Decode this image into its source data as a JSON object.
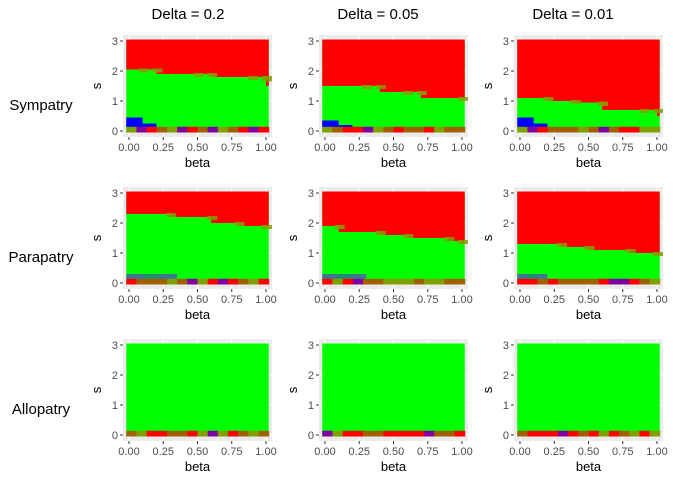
{
  "col_titles": [
    "Delta = 0.2",
    "Delta = 0.05",
    "Delta = 0.01"
  ],
  "row_labels": [
    "Sympatry",
    "Parapatry",
    "Allopatry"
  ],
  "colors": {
    "red": "#ff0000",
    "green": "#00ff00",
    "blue": "#0000ff",
    "olive": "#80a000",
    "brown": "#a06000",
    "purple": "#8000a0",
    "teal": "#1a8f73",
    "steelblue": "#3b7a8c",
    "panel_bg": "#ebebeb",
    "grid": "#ffffff"
  },
  "chart_data": [
    {
      "type": "heatmap",
      "row": "Sympatry",
      "col": "Delta = 0.2",
      "xlabel": "beta",
      "ylabel": "s",
      "xlim": [
        0,
        1
      ],
      "ylim": [
        0,
        3
      ],
      "x_ticks": [
        "0.00",
        "0.25",
        "0.50",
        "0.75",
        "1.00"
      ],
      "y_ticks": [
        "0",
        "1",
        "2",
        "3"
      ],
      "green_red_boundary": [
        [
          0.0,
          2.05
        ],
        [
          0.1,
          2.05
        ],
        [
          0.2,
          1.9
        ],
        [
          0.5,
          1.9
        ],
        [
          0.6,
          1.8
        ],
        [
          0.9,
          1.8
        ],
        [
          1.0,
          1.5
        ]
      ],
      "blue_region": {
        "x": [
          0.0,
          0.2
        ],
        "s_top": [
          0.45,
          0.25
        ]
      }
    },
    {
      "type": "heatmap",
      "row": "Sympatry",
      "col": "Delta = 0.05",
      "xlabel": "beta",
      "ylabel": "s",
      "xlim": [
        0,
        1
      ],
      "ylim": [
        0,
        3
      ],
      "x_ticks": [
        "0.00",
        "0.25",
        "0.50",
        "0.75",
        "1.00"
      ],
      "y_ticks": [
        "0",
        "1",
        "2",
        "3"
      ],
      "green_red_boundary": [
        [
          0.0,
          1.5
        ],
        [
          0.3,
          1.5
        ],
        [
          0.4,
          1.3
        ],
        [
          0.6,
          1.3
        ],
        [
          0.7,
          1.1
        ],
        [
          1.0,
          1.1
        ]
      ],
      "blue_region": {
        "x": [
          0.0,
          0.2
        ],
        "s_top": [
          0.35,
          0.2
        ]
      }
    },
    {
      "type": "heatmap",
      "row": "Sympatry",
      "col": "Delta = 0.01",
      "xlabel": "beta",
      "ylabel": "s",
      "xlim": [
        0,
        1
      ],
      "ylim": [
        0,
        3
      ],
      "x_ticks": [
        "0.00",
        "0.25",
        "0.50",
        "0.75",
        "1.00"
      ],
      "y_ticks": [
        "0",
        "1",
        "2",
        "3"
      ],
      "green_red_boundary": [
        [
          0.0,
          1.1
        ],
        [
          0.2,
          1.0
        ],
        [
          0.4,
          0.95
        ],
        [
          0.6,
          0.7
        ],
        [
          0.9,
          0.7
        ],
        [
          1.0,
          0.5
        ]
      ],
      "blue_region": {
        "x": [
          0.0,
          0.2
        ],
        "s_top": [
          0.45,
          0.25
        ]
      }
    },
    {
      "type": "heatmap",
      "row": "Parapatry",
      "col": "Delta = 0.2",
      "xlabel": "beta",
      "ylabel": "s",
      "xlim": [
        0,
        1
      ],
      "ylim": [
        0,
        3
      ],
      "x_ticks": [
        "0.00",
        "0.25",
        "0.50",
        "0.75",
        "1.00"
      ],
      "y_ticks": [
        "0",
        "1",
        "2",
        "3"
      ],
      "green_red_boundary": [
        [
          0.0,
          2.3
        ],
        [
          0.3,
          2.2
        ],
        [
          0.6,
          2.0
        ],
        [
          0.8,
          1.9
        ],
        [
          1.0,
          1.9
        ]
      ],
      "blue_region": {
        "x": [
          0.0,
          0.35
        ],
        "s_top": [
          0.3,
          0.3
        ]
      }
    },
    {
      "type": "heatmap",
      "row": "Parapatry",
      "col": "Delta = 0.05",
      "xlabel": "beta",
      "ylabel": "s",
      "xlim": [
        0,
        1
      ],
      "ylim": [
        0,
        3
      ],
      "x_ticks": [
        "0.00",
        "0.25",
        "0.50",
        "0.75",
        "1.00"
      ],
      "y_ticks": [
        "0",
        "1",
        "2",
        "3"
      ],
      "green_red_boundary": [
        [
          0.0,
          1.9
        ],
        [
          0.1,
          1.7
        ],
        [
          0.4,
          1.6
        ],
        [
          0.6,
          1.5
        ],
        [
          0.9,
          1.4
        ],
        [
          1.0,
          1.3
        ]
      ],
      "blue_region": {
        "x": [
          0.0,
          0.3
        ],
        "s_top": [
          0.3,
          0.3
        ]
      }
    },
    {
      "type": "heatmap",
      "row": "Parapatry",
      "col": "Delta = 0.01",
      "xlabel": "beta",
      "ylabel": "s",
      "xlim": [
        0,
        1
      ],
      "ylim": [
        0,
        3
      ],
      "x_ticks": [
        "0.00",
        "0.25",
        "0.50",
        "0.75",
        "1.00"
      ],
      "y_ticks": [
        "0",
        "1",
        "2",
        "3"
      ],
      "green_red_boundary": [
        [
          0.0,
          1.3
        ],
        [
          0.3,
          1.2
        ],
        [
          0.5,
          1.1
        ],
        [
          0.8,
          1.0
        ],
        [
          1.0,
          0.95
        ]
      ],
      "blue_region": {
        "x": [
          0.0,
          0.2
        ],
        "s_top": [
          0.3,
          0.3
        ]
      }
    },
    {
      "type": "heatmap",
      "row": "Allopatry",
      "col": "Delta = 0.2",
      "xlabel": "beta",
      "ylabel": "s",
      "xlim": [
        0,
        1
      ],
      "ylim": [
        0,
        3
      ],
      "x_ticks": [
        "0.00",
        "0.25",
        "0.50",
        "0.75",
        "1.00"
      ],
      "y_ticks": [
        "0",
        "1",
        "2",
        "3"
      ],
      "green_red_boundary": [],
      "blue_region": {
        "x": [
          0,
          0
        ],
        "s_top": [
          0,
          0
        ]
      }
    },
    {
      "type": "heatmap",
      "row": "Allopatry",
      "col": "Delta = 0.05",
      "xlabel": "beta",
      "ylabel": "s",
      "xlim": [
        0,
        1
      ],
      "ylim": [
        0,
        3
      ],
      "x_ticks": [
        "0.00",
        "0.25",
        "0.50",
        "0.75",
        "1.00"
      ],
      "y_ticks": [
        "0",
        "1",
        "2",
        "3"
      ],
      "green_red_boundary": [],
      "blue_region": {
        "x": [
          0,
          0
        ],
        "s_top": [
          0,
          0
        ]
      }
    },
    {
      "type": "heatmap",
      "row": "Allopatry",
      "col": "Delta = 0.01",
      "xlabel": "beta",
      "ylabel": "s",
      "xlim": [
        0,
        1
      ],
      "ylim": [
        0,
        3
      ],
      "x_ticks": [
        "0.00",
        "0.25",
        "0.50",
        "0.75",
        "1.00"
      ],
      "y_ticks": [
        "0",
        "1",
        "2",
        "3"
      ],
      "green_red_boundary": [],
      "blue_region": {
        "x": [
          0,
          0
        ],
        "s_top": [
          0,
          0
        ]
      }
    }
  ]
}
